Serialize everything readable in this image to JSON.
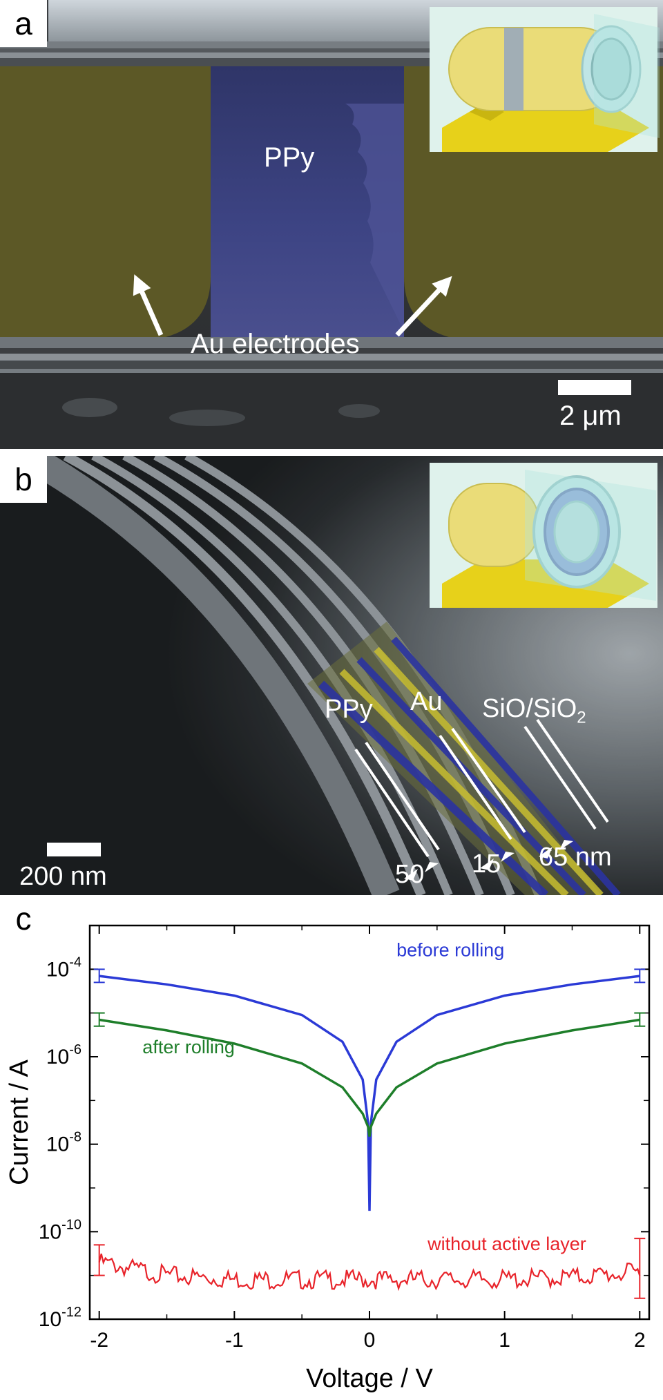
{
  "panel_a": {
    "letter": "a",
    "label_ppy": "PPy",
    "label_electrodes": "Au electrodes",
    "scale_bar": "2 μm"
  },
  "panel_b": {
    "letter": "b",
    "label_ppy": "PPy",
    "label_au": "Au",
    "label_sio": "SiO/SiO",
    "label_sio_sub": "2",
    "thickness_ppy": "50",
    "thickness_au": "15",
    "thickness_sio": "65 nm",
    "scale_bar": "200 nm"
  },
  "panel_c": {
    "letter": "c"
  },
  "chart_data": {
    "type": "line",
    "xlabel": "Voltage / V",
    "ylabel": "Current / A",
    "xlim": [
      -2,
      2
    ],
    "ylim": [
      1e-12,
      0.001
    ],
    "yscale": "log",
    "x_ticks": [
      "-2",
      "-1",
      "0",
      "1",
      "2"
    ],
    "y_ticks": [
      {
        "base": "10",
        "exp": "-4"
      },
      {
        "base": "10",
        "exp": "-6"
      },
      {
        "base": "10",
        "exp": "-8"
      },
      {
        "base": "10",
        "exp": "-10"
      },
      {
        "base": "10",
        "exp": "-12"
      }
    ],
    "grid": false,
    "series": [
      {
        "name": "before rolling",
        "color": "#2b3ad6",
        "x": [
          -2,
          -1.5,
          -1,
          -0.5,
          -0.2,
          -0.05,
          -0.01,
          0,
          0.01,
          0.05,
          0.2,
          0.5,
          1,
          1.5,
          2
        ],
        "y": [
          7e-05,
          4.5e-05,
          2.5e-05,
          9e-06,
          2.2e-06,
          3e-07,
          3e-08,
          3e-10,
          3e-08,
          3e-07,
          2.2e-06,
          9e-06,
          2.5e-05,
          4.5e-05,
          7e-05
        ],
        "error_bars": [
          {
            "x": -2,
            "low": 5e-05,
            "high": 0.0001
          },
          {
            "x": 2,
            "low": 5e-05,
            "high": 0.0001
          }
        ]
      },
      {
        "name": "after rolling",
        "color": "#1e7e2a",
        "x": [
          -2,
          -1.5,
          -1,
          -0.5,
          -0.2,
          -0.05,
          -0.01,
          0,
          0.01,
          0.05,
          0.2,
          0.5,
          1,
          1.5,
          2
        ],
        "y": [
          7e-06,
          4e-06,
          2e-06,
          7e-07,
          2e-07,
          5e-08,
          2.5e-08,
          1.5e-08,
          2.5e-08,
          5e-08,
          2e-07,
          7e-07,
          2e-06,
          4e-06,
          7e-06
        ],
        "error_bars": [
          {
            "x": -2,
            "low": 5e-06,
            "high": 1e-05
          },
          {
            "x": 2,
            "low": 5e-06,
            "high": 1e-05
          }
        ]
      },
      {
        "name": "without active layer",
        "color": "#e8232a",
        "x": [
          -2,
          -1.5,
          -1,
          -0.5,
          0,
          0.5,
          1,
          1.5,
          2
        ],
        "y": [
          2e-11,
          1e-11,
          8e-12,
          8e-12,
          8e-12,
          8e-12,
          8e-12,
          9e-12,
          1.2e-11
        ],
        "error_bars": [
          {
            "x": -2,
            "low": 1e-11,
            "high": 5e-11
          },
          {
            "x": 2,
            "low": 3e-12,
            "high": 7e-11
          }
        ]
      }
    ]
  }
}
